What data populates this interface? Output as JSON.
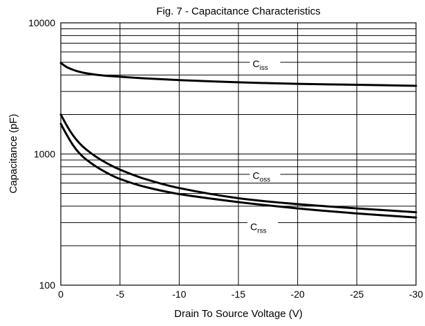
{
  "chart_data": {
    "type": "line",
    "title": "Fig. 7 - Capacitance Characteristics",
    "xlabel": "Drain To Source Voltage (V)",
    "ylabel": "Capacitance (pF)",
    "x_reversed": true,
    "y_scale": "log",
    "xlim": [
      0,
      -30
    ],
    "ylim": [
      100,
      10000
    ],
    "x_ticks": [
      0,
      -5,
      -10,
      -15,
      -20,
      -25,
      -30
    ],
    "x_tick_labels": [
      "0",
      "-5",
      "-10",
      "-15",
      "-20",
      "-25",
      "-30"
    ],
    "y_tick_labels": [
      {
        "value": 100,
        "label": "100"
      },
      {
        "value": 1000,
        "label": "1000"
      },
      {
        "value": 10000,
        "label": "10000"
      }
    ],
    "grid": true,
    "series": [
      {
        "name": "Ciss",
        "label_main": "C",
        "label_sub": "iss",
        "x": [
          0,
          -0.5,
          -1,
          -1.5,
          -2,
          -3,
          -4,
          -5,
          -7,
          -10,
          -15,
          -20,
          -25,
          -30
        ],
        "y": [
          4950,
          4600,
          4400,
          4250,
          4150,
          4020,
          3940,
          3880,
          3780,
          3660,
          3520,
          3430,
          3370,
          3310
        ]
      },
      {
        "name": "Coss",
        "label_main": "C",
        "label_sub": "oss",
        "x": [
          0,
          -0.5,
          -1,
          -1.5,
          -2,
          -3,
          -4,
          -5,
          -7,
          -10,
          -15,
          -20,
          -25,
          -30
        ],
        "y": [
          2000,
          1650,
          1400,
          1230,
          1110,
          950,
          840,
          760,
          650,
          550,
          460,
          415,
          385,
          360
        ]
      },
      {
        "name": "Crss",
        "label_main": "C",
        "label_sub": "rss",
        "x": [
          0,
          -0.5,
          -1,
          -1.5,
          -2,
          -3,
          -4,
          -5,
          -7,
          -10,
          -15,
          -20,
          -25,
          -30
        ],
        "y": [
          1700,
          1400,
          1180,
          1030,
          930,
          800,
          710,
          645,
          565,
          495,
          430,
          385,
          352,
          328
        ]
      }
    ]
  }
}
